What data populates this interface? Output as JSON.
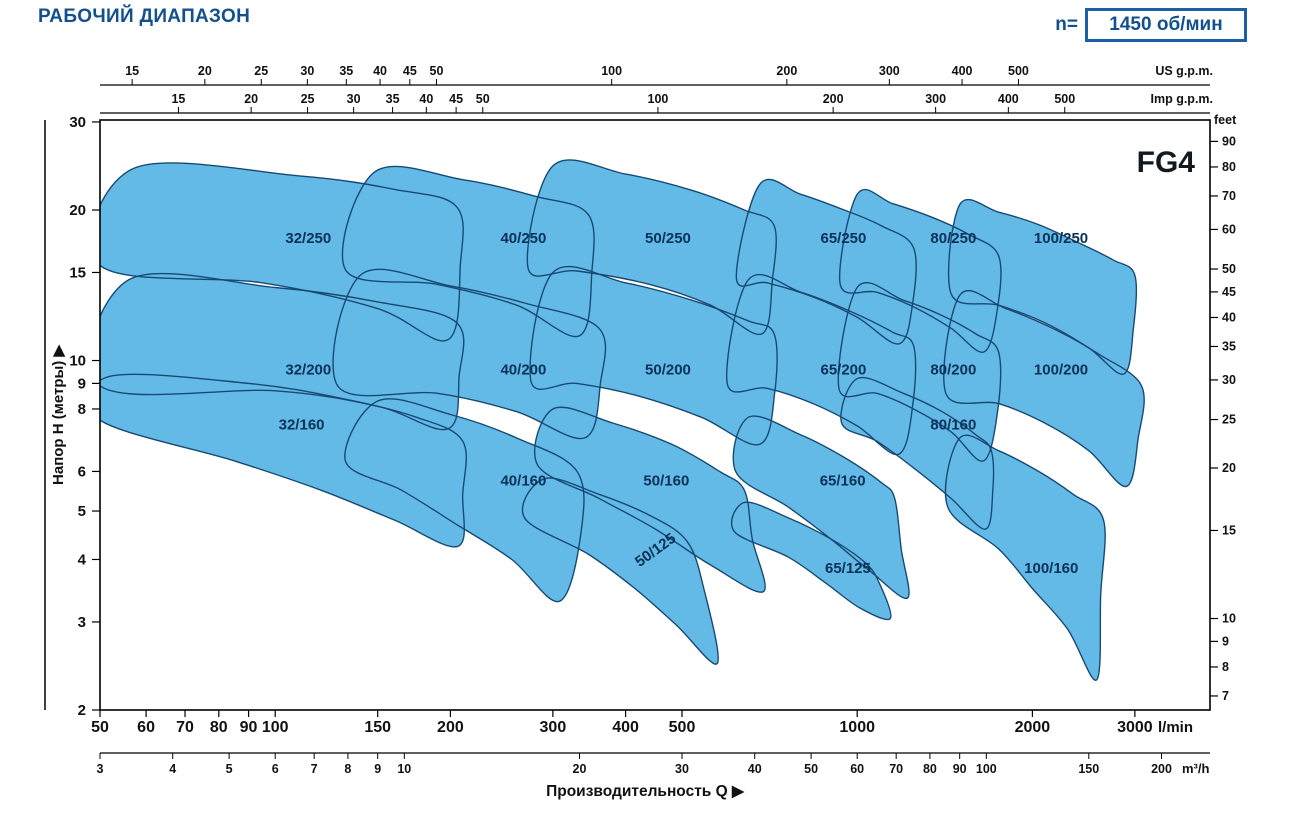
{
  "title": "РАБОЧИЙ ДИАПАЗОН",
  "speed": {
    "prefix": "n=",
    "value": "1450 об/мин"
  },
  "colors": {
    "accent": "#12508e",
    "region_fill": "#64bae7",
    "region_stroke": "#174a73",
    "region_label": "#0a3158",
    "axis": "#111111"
  },
  "chart_data": {
    "type": "area",
    "title": "РАБОЧИЙ ДИАПАЗОН",
    "pump_family": "FG4",
    "speed_rpm": 1450,
    "x_scale": "log",
    "y_scale": "log",
    "x_range_lmin": [
      50,
      4100
    ],
    "y_range_m": [
      2,
      30
    ],
    "axes": {
      "top_outer": {
        "label": "US g.p.m.",
        "to_lmin": 3.78541,
        "ticks": [
          15,
          20,
          25,
          30,
          35,
          40,
          45,
          50,
          100,
          200,
          300,
          400,
          500
        ]
      },
      "top_inner": {
        "label": "Imp g.p.m.",
        "to_lmin": 4.54609,
        "ticks": [
          15,
          20,
          25,
          30,
          35,
          40,
          45,
          50,
          100,
          200,
          300,
          400,
          500
        ]
      },
      "bottom_main": {
        "label": "l/min",
        "to_lmin": 1,
        "ticks": [
          50,
          60,
          70,
          80,
          90,
          100,
          150,
          200,
          300,
          400,
          500,
          1000,
          2000,
          3000
        ]
      },
      "bottom_outer": {
        "label": "m³/h",
        "to_lmin": 16.66667,
        "ticks": [
          3,
          4,
          5,
          6,
          7,
          8,
          9,
          10,
          20,
          30,
          40,
          50,
          60,
          70,
          80,
          90,
          100,
          150,
          200
        ]
      },
      "left": {
        "label": "Напор H (метры)",
        "ticks": [
          30,
          20,
          15,
          10,
          9,
          8,
          6,
          5,
          4,
          3,
          2
        ]
      },
      "right": {
        "label": "feet",
        "per_m": 3.28084,
        "ticks": [
          90,
          80,
          70,
          60,
          50,
          45,
          40,
          35,
          30,
          25,
          20,
          15,
          10,
          9,
          8,
          7
        ]
      },
      "x_title": "Производительность Q  ▶",
      "y_arrow": "▶"
    },
    "regions": [
      {
        "label": "32/250",
        "label_at": [
          114,
          17.6
        ],
        "outline": [
          [
            57,
            24.2
          ],
          [
            110,
            23.4
          ],
          [
            160,
            22.0
          ],
          [
            205,
            20.3
          ],
          [
            208,
            15.5
          ],
          [
            198,
            11.0
          ],
          [
            150,
            12.7
          ],
          [
            95,
            14.3
          ],
          [
            50,
            15.5
          ]
        ]
      },
      {
        "label": "40/250",
        "label_at": [
          267,
          17.6
        ],
        "outline": [
          [
            148,
            23.8
          ],
          [
            210,
            23.0
          ],
          [
            280,
            21.3
          ],
          [
            345,
            19.6
          ],
          [
            350,
            15.0
          ],
          [
            333,
            11.2
          ],
          [
            260,
            12.9
          ],
          [
            190,
            14.2
          ],
          [
            132,
            15.2
          ]
        ]
      },
      {
        "label": "50/250",
        "label_at": [
          473,
          17.6
        ],
        "outline": [
          [
            300,
            24.5
          ],
          [
            400,
            23.6
          ],
          [
            520,
            21.9
          ],
          [
            640,
            20.0
          ],
          [
            720,
            18.6
          ],
          [
            715,
            14.5
          ],
          [
            685,
            11.3
          ],
          [
            560,
            12.9
          ],
          [
            440,
            14.2
          ],
          [
            330,
            15.1
          ],
          [
            272,
            15.3
          ]
        ]
      },
      {
        "label": "65/250",
        "label_at": [
          947,
          17.6
        ],
        "outline": [
          [
            680,
            22.5
          ],
          [
            800,
            21.5
          ],
          [
            950,
            20.0
          ],
          [
            1100,
            18.6
          ],
          [
            1250,
            16.8
          ],
          [
            1245,
            13.0
          ],
          [
            1180,
            10.8
          ],
          [
            1000,
            12.2
          ],
          [
            840,
            13.4
          ],
          [
            700,
            14.3
          ],
          [
            620,
            14.6
          ]
        ]
      },
      {
        "label": "80/250",
        "label_at": [
          1463,
          17.6
        ],
        "outline": [
          [
            1000,
            21.5
          ],
          [
            1150,
            20.6
          ],
          [
            1350,
            19.3
          ],
          [
            1550,
            17.9
          ],
          [
            1750,
            16.2
          ],
          [
            1740,
            12.6
          ],
          [
            1650,
            10.4
          ],
          [
            1450,
            11.6
          ],
          [
            1250,
            12.8
          ],
          [
            1080,
            13.7
          ],
          [
            935,
            14.2
          ]
        ]
      },
      {
        "label": "100/250",
        "label_at": [
          2240,
          17.6
        ],
        "outline": [
          [
            1500,
            20.5
          ],
          [
            1750,
            19.8
          ],
          [
            2050,
            18.7
          ],
          [
            2400,
            17.2
          ],
          [
            2750,
            15.9
          ],
          [
            3000,
            14.8
          ],
          [
            2980,
            11.5
          ],
          [
            2870,
            9.4
          ],
          [
            2500,
            10.6
          ],
          [
            2100,
            11.9
          ],
          [
            1750,
            12.9
          ],
          [
            1450,
            13.6
          ]
        ]
      },
      {
        "label": "32/200",
        "label_at": [
          114,
          9.6
        ],
        "outline": [
          [
            56,
            14.5
          ],
          [
            100,
            14.0
          ],
          [
            150,
            13.1
          ],
          [
            205,
            11.9
          ],
          [
            207,
            9.3
          ],
          [
            198,
            7.3
          ],
          [
            150,
            8.1
          ],
          [
            100,
            8.7
          ],
          [
            50,
            8.9
          ]
        ]
      },
      {
        "label": "40/200",
        "label_at": [
          267,
          9.6
        ],
        "outline": [
          [
            140,
            14.8
          ],
          [
            200,
            14.1
          ],
          [
            270,
            13.0
          ],
          [
            360,
            11.6
          ],
          [
            362,
            9.0
          ],
          [
            340,
            7.0
          ],
          [
            260,
            7.9
          ],
          [
            190,
            8.6
          ],
          [
            128,
            8.9
          ]
        ]
      },
      {
        "label": "50/200",
        "label_at": [
          473,
          9.6
        ],
        "outline": [
          [
            300,
            15.0
          ],
          [
            400,
            14.3
          ],
          [
            520,
            13.2
          ],
          [
            650,
            12.0
          ],
          [
            720,
            11.3
          ],
          [
            722,
            8.7
          ],
          [
            680,
            6.8
          ],
          [
            540,
            7.7
          ],
          [
            420,
            8.5
          ],
          [
            330,
            9.0
          ],
          [
            275,
            9.1
          ]
        ]
      },
      {
        "label": "65/200",
        "label_at": [
          947,
          9.6
        ],
        "outline": [
          [
            650,
            14.5
          ],
          [
            800,
            13.7
          ],
          [
            980,
            12.5
          ],
          [
            1150,
            11.4
          ],
          [
            1250,
            10.7
          ],
          [
            1248,
            8.3
          ],
          [
            1180,
            6.5
          ],
          [
            1000,
            7.4
          ],
          [
            840,
            8.2
          ],
          [
            700,
            8.8
          ],
          [
            598,
            9.0
          ]
        ]
      },
      {
        "label": "80/200",
        "label_at": [
          1463,
          9.6
        ],
        "outline": [
          [
            1000,
            14.0
          ],
          [
            1200,
            13.2
          ],
          [
            1400,
            12.3
          ],
          [
            1600,
            11.3
          ],
          [
            1750,
            10.4
          ],
          [
            1745,
            8.0
          ],
          [
            1650,
            6.3
          ],
          [
            1450,
            7.2
          ],
          [
            1250,
            8.0
          ],
          [
            1080,
            8.6
          ],
          [
            930,
            8.8
          ]
        ]
      },
      {
        "label": "100/200",
        "label_at": [
          2240,
          9.6
        ],
        "outline": [
          [
            1500,
            13.5
          ],
          [
            1800,
            12.7
          ],
          [
            2200,
            11.5
          ],
          [
            2600,
            10.3
          ],
          [
            3080,
            8.9
          ],
          [
            3040,
            7.0
          ],
          [
            2900,
            5.6
          ],
          [
            2500,
            6.6
          ],
          [
            2100,
            7.5
          ],
          [
            1750,
            8.2
          ],
          [
            1420,
            8.6
          ]
        ]
      },
      {
        "label": "32/160",
        "label_at": [
          111,
          7.45
        ],
        "outline": [
          [
            52,
            9.3
          ],
          [
            90,
            9.0
          ],
          [
            130,
            8.4
          ],
          [
            175,
            7.7
          ],
          [
            210,
            6.9
          ],
          [
            210,
            5.4
          ],
          [
            206,
            4.25
          ],
          [
            160,
            4.8
          ],
          [
            120,
            5.5
          ],
          [
            85,
            6.3
          ],
          [
            50,
            7.6
          ]
        ]
      },
      {
        "label": "40/160",
        "label_at": [
          267,
          5.76
        ],
        "outline": [
          [
            150,
            8.3
          ],
          [
            200,
            7.8
          ],
          [
            260,
            7.0
          ],
          [
            330,
            6.0
          ],
          [
            335,
            4.5
          ],
          [
            308,
            3.3
          ],
          [
            255,
            4.0
          ],
          [
            205,
            4.7
          ],
          [
            165,
            5.5
          ],
          [
            132,
            6.3
          ]
        ]
      },
      {
        "label": "50/160",
        "label_at": [
          470,
          5.76
        ],
        "outline": [
          [
            300,
            8.0
          ],
          [
            380,
            7.5
          ],
          [
            480,
            6.8
          ],
          [
            580,
            6.0
          ],
          [
            640,
            5.5
          ],
          [
            660,
            4.4
          ],
          [
            690,
            3.45
          ],
          [
            560,
            3.9
          ],
          [
            450,
            4.6
          ],
          [
            360,
            5.3
          ],
          [
            282,
            6.2
          ]
        ]
      },
      {
        "label": "65/160",
        "label_at": [
          944,
          5.76
        ],
        "outline": [
          [
            650,
            7.7
          ],
          [
            800,
            7.1
          ],
          [
            950,
            6.4
          ],
          [
            1100,
            5.7
          ],
          [
            1160,
            5.3
          ],
          [
            1190,
            4.2
          ],
          [
            1220,
            3.35
          ],
          [
            1050,
            3.8
          ],
          [
            900,
            4.4
          ],
          [
            760,
            5.1
          ],
          [
            618,
            6.0
          ]
        ]
      },
      {
        "label": "80/160",
        "label_at": [
          1463,
          7.45
        ],
        "outline": [
          [
            1000,
            9.2
          ],
          [
            1200,
            8.6
          ],
          [
            1400,
            7.9
          ],
          [
            1600,
            7.1
          ],
          [
            1700,
            6.6
          ],
          [
            1710,
            5.5
          ],
          [
            1660,
            4.6
          ],
          [
            1450,
            5.3
          ],
          [
            1250,
            6.1
          ],
          [
            1080,
            6.9
          ],
          [
            940,
            7.5
          ]
        ]
      },
      {
        "label": "100/160",
        "label_at": [
          2155,
          3.85
        ],
        "outline": [
          [
            1500,
            7.0
          ],
          [
            1750,
            6.6
          ],
          [
            2050,
            6.0
          ],
          [
            2350,
            5.4
          ],
          [
            2650,
            4.8
          ],
          [
            2620,
            3.4
          ],
          [
            2580,
            2.3
          ],
          [
            2300,
            2.9
          ],
          [
            2000,
            3.5
          ],
          [
            1750,
            4.2
          ],
          [
            1430,
            5.1
          ]
        ]
      },
      {
        "label": "50/125",
        "label_at": [
          455,
          4.2
        ],
        "rotate": -36,
        "outline": [
          [
            290,
            5.8
          ],
          [
            360,
            5.4
          ],
          [
            440,
            4.9
          ],
          [
            510,
            4.35
          ],
          [
            545,
            3.5
          ],
          [
            575,
            2.48
          ],
          [
            490,
            2.95
          ],
          [
            415,
            3.5
          ],
          [
            345,
            4.1
          ],
          [
            268,
            4.85
          ]
        ]
      },
      {
        "label": "65/125",
        "label_at": [
          964,
          3.85
        ],
        "outline": [
          [
            640,
            5.2
          ],
          [
            760,
            4.85
          ],
          [
            900,
            4.4
          ],
          [
            1030,
            3.95
          ],
          [
            1090,
            3.6
          ],
          [
            1140,
            3.05
          ],
          [
            1010,
            3.2
          ],
          [
            880,
            3.6
          ],
          [
            760,
            4.05
          ],
          [
            615,
            4.55
          ]
        ]
      }
    ]
  }
}
